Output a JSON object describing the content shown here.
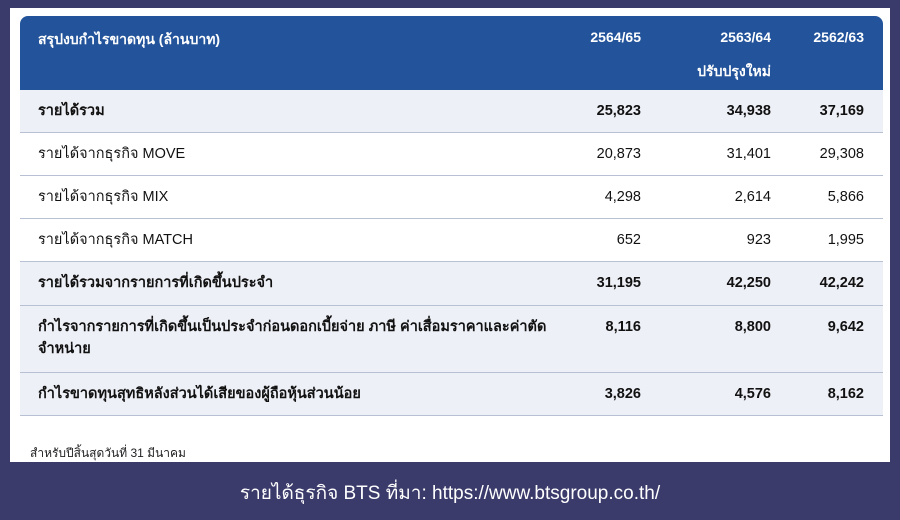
{
  "table": {
    "title": "สรุปงบกำไรขาดทุน (ล้านบาท)",
    "columns": [
      "2564/65",
      "2563/64",
      "2562/63"
    ],
    "column_note": "ปรับปรุงใหม่",
    "rows": [
      {
        "label": "รายได้รวม",
        "values": [
          "25,823",
          "34,938",
          "37,169"
        ],
        "bold": true
      },
      {
        "label": "รายได้จากธุรกิจ MOVE",
        "values": [
          "20,873",
          "31,401",
          "29,308"
        ],
        "bold": false
      },
      {
        "label": "รายได้จากธุรกิจ MIX",
        "values": [
          "4,298",
          "2,614",
          "5,866"
        ],
        "bold": false
      },
      {
        "label": "รายได้จากธุรกิจ MATCH",
        "values": [
          "652",
          "923",
          "1,995"
        ],
        "bold": false
      },
      {
        "label": "รายได้รวมจากรายการที่เกิดขึ้นประจำ",
        "values": [
          "31,195",
          "42,250",
          "42,242"
        ],
        "bold": true
      },
      {
        "label": "กำไรจากรายการที่เกิดขึ้นเป็นประจำก่อนดอกเบี้ยจ่าย ภาษี ค่าเสื่อมราคาและค่าตัดจำหน่าย",
        "values": [
          "8,116",
          "8,800",
          "9,642"
        ],
        "bold": true
      },
      {
        "label": "กำไรขาดทุนสุทธิหลังส่วนได้เสียของผู้ถือหุ้นส่วนน้อย",
        "values": [
          "3,826",
          "4,576",
          "8,162"
        ],
        "bold": true
      }
    ],
    "footnote": "สำหรับปีสิ้นสุดวันที่ 31 มีนาคม"
  },
  "caption": "รายได้ธุรกิจ BTS ที่มา: https://www.btsgroup.co.th/",
  "colors": {
    "header": "#23539a",
    "background": "#3a3a6b",
    "row_highlight": "#eef0f7"
  }
}
